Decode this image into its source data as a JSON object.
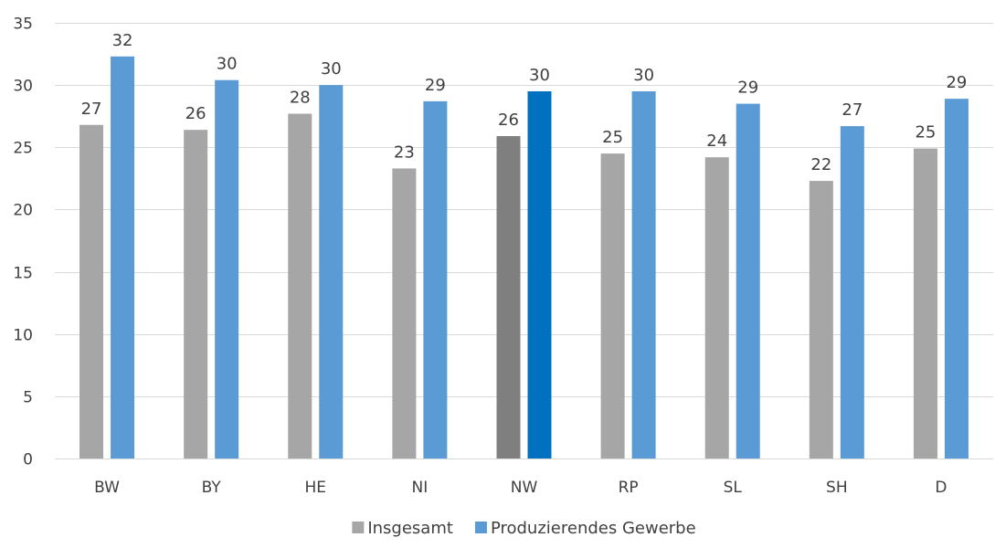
{
  "chart_data": {
    "type": "bar",
    "categories": [
      "BW",
      "BY",
      "HE",
      "NI",
      "NW",
      "RP",
      "SL",
      "SH",
      "D"
    ],
    "series": [
      {
        "name": "Insgesamt",
        "values": [
          26.8,
          26.4,
          27.7,
          23.3,
          25.9,
          24.5,
          24.2,
          22.3,
          24.9
        ],
        "labels": [
          "27",
          "26",
          "28",
          "23",
          "26",
          "25",
          "24",
          "22",
          "25"
        ],
        "color": "#a6a6a6",
        "highlight_color": "#7f7f7f"
      },
      {
        "name": "Produzierendes Gewerbe",
        "values": [
          32.3,
          30.4,
          30.0,
          28.7,
          29.5,
          29.5,
          28.5,
          26.7,
          28.9
        ],
        "labels": [
          "32",
          "30",
          "30",
          "29",
          "30",
          "30",
          "29",
          "27",
          "29"
        ],
        "color": "#5b9bd5",
        "highlight_color": "#0070c0"
      }
    ],
    "highlight_category": "NW",
    "ylim": [
      0,
      35
    ],
    "yticks": [
      0,
      5,
      10,
      15,
      20,
      25,
      30,
      35
    ],
    "grid": true,
    "legend_position": "bottom",
    "title": "",
    "xlabel": "",
    "ylabel": ""
  }
}
